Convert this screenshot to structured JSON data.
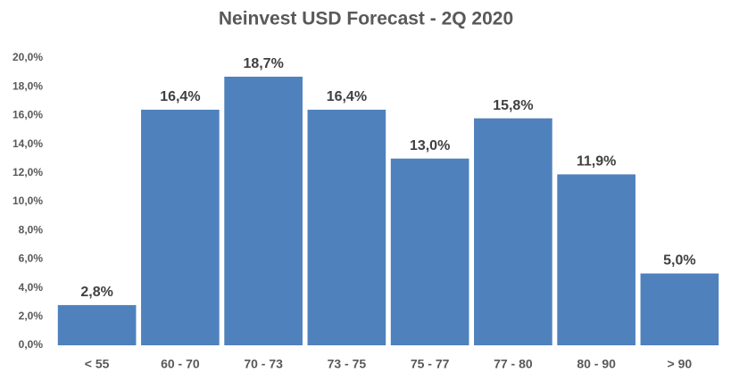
{
  "chart_data": {
    "type": "bar",
    "title": "Neinvest USD Forecast - 2Q 2020",
    "categories": [
      "< 55",
      "60 - 70",
      "70 - 73",
      "73 - 75",
      "75 - 77",
      "77 - 80",
      "80 - 90",
      "> 90"
    ],
    "values": [
      2.8,
      16.4,
      18.7,
      16.4,
      13.0,
      15.8,
      11.9,
      5.0
    ],
    "value_labels": [
      "2,8%",
      "16,4%",
      "18,7%",
      "16,4%",
      "13,0%",
      "15,8%",
      "11,9%",
      "5,0%"
    ],
    "color": "#4f81bd",
    "ylim": [
      0,
      20
    ],
    "yticks": [
      {
        "value": 0,
        "label": "0,0%"
      },
      {
        "value": 2,
        "label": "2,0%"
      },
      {
        "value": 4,
        "label": "4,0%"
      },
      {
        "value": 6,
        "label": "6,0%"
      },
      {
        "value": 8,
        "label": "8,0%"
      },
      {
        "value": 10,
        "label": "10,0%"
      },
      {
        "value": 12,
        "label": "12,0%"
      },
      {
        "value": 14,
        "label": "14,0%"
      },
      {
        "value": 16,
        "label": "16,0%"
      },
      {
        "value": 18,
        "label": "18,0%"
      },
      {
        "value": 20,
        "label": "20,0%"
      }
    ],
    "grid": false
  }
}
